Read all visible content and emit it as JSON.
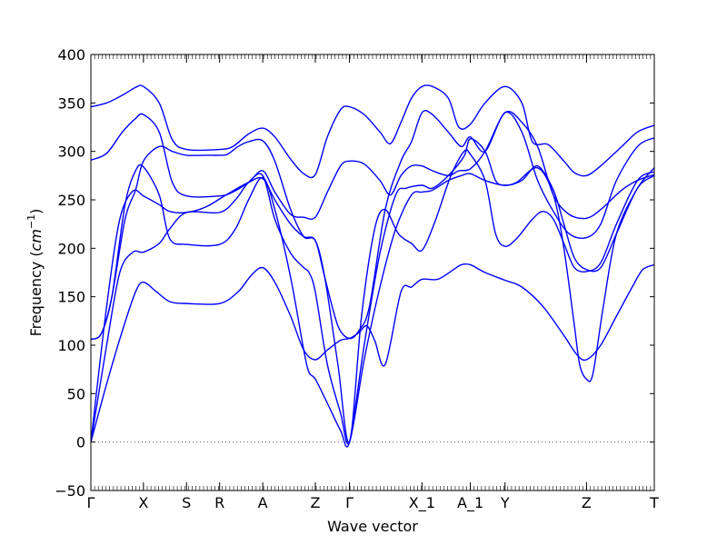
{
  "chart_data": {
    "type": "line",
    "title": "",
    "xlabel": "Wave vector",
    "ylabel_prefix": "Frequency (",
    "ylabel_unit": "cm",
    "ylabel_exp": "−1",
    "ylabel_suffix": ")",
    "ylim": [
      -50,
      400
    ],
    "yticks": [
      -50,
      0,
      50,
      100,
      150,
      200,
      250,
      300,
      350,
      400
    ],
    "ytick_labels": [
      "−50",
      "0",
      "50",
      "100",
      "150",
      "200",
      "250",
      "300",
      "350",
      "400"
    ],
    "xlim": [
      0,
      10.72
    ],
    "high_symmetry_points": [
      {
        "label": "Γ",
        "x": 0
      },
      {
        "label": "X",
        "x": 1
      },
      {
        "label": "S",
        "x": 1.82
      },
      {
        "label": "R",
        "x": 2.45
      },
      {
        "label": "A",
        "x": 3.27
      },
      {
        "label": "Z",
        "x": 4.27
      },
      {
        "label": "Γ",
        "x": 4.92
      },
      {
        "label": "X_1",
        "x": 6.3
      },
      {
        "label": "A_1",
        "x": 7.22
      },
      {
        "label": "Y",
        "x": 7.88
      },
      {
        "label": "Z",
        "x": 9.43
      },
      {
        "label": "T",
        "x": 10.72
      }
    ],
    "zero_line": {
      "y": 0,
      "style": "dotted",
      "color": "#555555"
    },
    "line_color": "#0000ff",
    "series": [
      {
        "values": [
          [
            0,
            0
          ],
          [
            0.3,
            60
          ],
          [
            0.6,
            115
          ],
          [
            0.85,
            155
          ],
          [
            1.0,
            165
          ],
          [
            1.25,
            155
          ],
          [
            1.5,
            145
          ],
          [
            1.82,
            143
          ],
          [
            2.45,
            143
          ],
          [
            2.8,
            155
          ],
          [
            3.05,
            172
          ],
          [
            3.27,
            180
          ],
          [
            3.5,
            165
          ],
          [
            3.8,
            130
          ],
          [
            4.05,
            95
          ],
          [
            4.27,
            85
          ],
          [
            4.5,
            95
          ],
          [
            4.75,
            105
          ],
          [
            4.92,
            107
          ],
          [
            5.1,
            113
          ],
          [
            5.25,
            120
          ],
          [
            5.4,
            105
          ],
          [
            5.6,
            80
          ],
          [
            5.9,
            155
          ],
          [
            6.1,
            160
          ],
          [
            6.3,
            168
          ],
          [
            6.6,
            168
          ],
          [
            6.9,
            178
          ],
          [
            7.05,
            183
          ],
          [
            7.22,
            183
          ],
          [
            7.5,
            175
          ],
          [
            7.88,
            167
          ],
          [
            8.2,
            160
          ],
          [
            8.6,
            140
          ],
          [
            9.0,
            110
          ],
          [
            9.25,
            90
          ],
          [
            9.43,
            85
          ],
          [
            9.7,
            100
          ],
          [
            10.0,
            130
          ],
          [
            10.3,
            160
          ],
          [
            10.5,
            178
          ],
          [
            10.72,
            183
          ]
        ]
      },
      {
        "values": [
          [
            0,
            0
          ],
          [
            0.3,
            100
          ],
          [
            0.55,
            175
          ],
          [
            0.8,
            196
          ],
          [
            1.0,
            196
          ],
          [
            1.3,
            205
          ],
          [
            1.5,
            220
          ],
          [
            1.82,
            237
          ],
          [
            2.45,
            237
          ],
          [
            2.75,
            250
          ],
          [
            3.0,
            268
          ],
          [
            3.27,
            275
          ],
          [
            3.5,
            230
          ],
          [
            3.8,
            195
          ],
          [
            4.05,
            180
          ],
          [
            4.15,
            175
          ],
          [
            4.27,
            155
          ],
          [
            4.5,
            80
          ],
          [
            4.75,
            30
          ],
          [
            4.92,
            0
          ],
          [
            5.2,
            85
          ],
          [
            5.5,
            160
          ],
          [
            5.8,
            220
          ],
          [
            6.1,
            255
          ],
          [
            6.3,
            258
          ],
          [
            6.5,
            260
          ],
          [
            6.8,
            270
          ],
          [
            7.05,
            275
          ],
          [
            7.22,
            277
          ],
          [
            7.5,
            270
          ],
          [
            7.88,
            265
          ],
          [
            8.2,
            270
          ],
          [
            8.5,
            285
          ],
          [
            8.8,
            260
          ],
          [
            9.0,
            225
          ],
          [
            9.2,
            190
          ],
          [
            9.43,
            178
          ],
          [
            9.7,
            180
          ],
          [
            10.0,
            215
          ],
          [
            10.4,
            262
          ],
          [
            10.72,
            275
          ]
        ]
      },
      {
        "values": [
          [
            0,
            0
          ],
          [
            0.3,
            140
          ],
          [
            0.55,
            230
          ],
          [
            0.8,
            259
          ],
          [
            1.0,
            254
          ],
          [
            1.3,
            245
          ],
          [
            1.5,
            238
          ],
          [
            1.82,
            237
          ],
          [
            2.2,
            243
          ],
          [
            2.6,
            256
          ],
          [
            3.0,
            268
          ],
          [
            3.27,
            272
          ],
          [
            3.5,
            250
          ],
          [
            3.8,
            225
          ],
          [
            4.05,
            212
          ],
          [
            4.27,
            208
          ],
          [
            4.45,
            170
          ],
          [
            4.7,
            80
          ],
          [
            4.92,
            0
          ],
          [
            5.15,
            130
          ],
          [
            5.4,
            220
          ],
          [
            5.6,
            240
          ],
          [
            5.85,
            215
          ],
          [
            6.1,
            205
          ],
          [
            6.3,
            198
          ],
          [
            6.55,
            228
          ],
          [
            6.85,
            275
          ],
          [
            7.1,
            300
          ],
          [
            7.22,
            297
          ],
          [
            7.5,
            270
          ],
          [
            7.7,
            215
          ],
          [
            7.88,
            202
          ],
          [
            8.1,
            210
          ],
          [
            8.4,
            230
          ],
          [
            8.6,
            238
          ],
          [
            8.8,
            230
          ],
          [
            9.0,
            205
          ],
          [
            9.2,
            180
          ],
          [
            9.43,
            176
          ],
          [
            9.7,
            185
          ],
          [
            10.0,
            225
          ],
          [
            10.4,
            270
          ],
          [
            10.72,
            279
          ]
        ]
      },
      {
        "values": [
          [
            0,
            106
          ],
          [
            0.2,
            112
          ],
          [
            0.4,
            150
          ],
          [
            0.65,
            245
          ],
          [
            0.85,
            280
          ],
          [
            1.0,
            284
          ],
          [
            1.3,
            255
          ],
          [
            1.5,
            210
          ],
          [
            1.82,
            204
          ],
          [
            2.45,
            204
          ],
          [
            2.75,
            220
          ],
          [
            3.0,
            250
          ],
          [
            3.27,
            273
          ],
          [
            3.5,
            240
          ],
          [
            3.8,
            170
          ],
          [
            4.05,
            95
          ],
          [
            4.15,
            72
          ],
          [
            4.27,
            65
          ],
          [
            4.5,
            40
          ],
          [
            4.75,
            12
          ],
          [
            4.92,
            0
          ],
          [
            5.2,
            100
          ],
          [
            5.5,
            195
          ],
          [
            5.8,
            255
          ],
          [
            6.0,
            262
          ],
          [
            6.3,
            265
          ],
          [
            6.5,
            262
          ],
          [
            6.8,
            275
          ],
          [
            7.1,
            295
          ],
          [
            7.22,
            313
          ],
          [
            7.5,
            300
          ],
          [
            7.7,
            270
          ],
          [
            7.88,
            265
          ],
          [
            8.1,
            268
          ],
          [
            8.5,
            283
          ],
          [
            8.8,
            255
          ],
          [
            9.0,
            200
          ],
          [
            9.2,
            120
          ],
          [
            9.3,
            80
          ],
          [
            9.43,
            65
          ],
          [
            9.55,
            70
          ],
          [
            9.75,
            140
          ],
          [
            10.0,
            215
          ],
          [
            10.4,
            262
          ],
          [
            10.72,
            283
          ]
        ]
      },
      {
        "values": [
          [
            0,
            291
          ],
          [
            0.3,
            298
          ],
          [
            0.6,
            320
          ],
          [
            0.85,
            334
          ],
          [
            1.0,
            338
          ],
          [
            1.3,
            320
          ],
          [
            1.55,
            268
          ],
          [
            1.82,
            254
          ],
          [
            2.45,
            254
          ],
          [
            2.7,
            258
          ],
          [
            3.0,
            268
          ],
          [
            3.27,
            280
          ],
          [
            3.5,
            258
          ],
          [
            3.8,
            235
          ],
          [
            4.05,
            232
          ],
          [
            4.27,
            232
          ],
          [
            4.5,
            258
          ],
          [
            4.75,
            285
          ],
          [
            4.92,
            290
          ],
          [
            5.2,
            287
          ],
          [
            5.5,
            270
          ],
          [
            5.7,
            255
          ],
          [
            5.9,
            275
          ],
          [
            6.1,
            285
          ],
          [
            6.3,
            285
          ],
          [
            6.5,
            280
          ],
          [
            6.8,
            275
          ],
          [
            7.0,
            280
          ],
          [
            7.22,
            282
          ],
          [
            7.5,
            300
          ],
          [
            7.88,
            340
          ],
          [
            8.2,
            330
          ],
          [
            8.5,
            305
          ],
          [
            8.8,
            255
          ],
          [
            9.1,
            235
          ],
          [
            9.43,
            231
          ],
          [
            9.7,
            240
          ],
          [
            10.1,
            260
          ],
          [
            10.4,
            270
          ],
          [
            10.72,
            276
          ]
        ]
      },
      {
        "values": [
          [
            0,
            346
          ],
          [
            0.3,
            350
          ],
          [
            0.6,
            358
          ],
          [
            0.85,
            366
          ],
          [
            1.0,
            367
          ],
          [
            1.3,
            350
          ],
          [
            1.55,
            312
          ],
          [
            1.82,
            302
          ],
          [
            2.45,
            302
          ],
          [
            2.7,
            305
          ],
          [
            3.0,
            318
          ],
          [
            3.27,
            324
          ],
          [
            3.5,
            315
          ],
          [
            3.8,
            292
          ],
          [
            4.05,
            277
          ],
          [
            4.27,
            276
          ],
          [
            4.5,
            315
          ],
          [
            4.75,
            343
          ],
          [
            4.92,
            346
          ],
          [
            5.2,
            338
          ],
          [
            5.5,
            320
          ],
          [
            5.7,
            308
          ],
          [
            5.9,
            330
          ],
          [
            6.1,
            355
          ],
          [
            6.3,
            367
          ],
          [
            6.5,
            367
          ],
          [
            6.8,
            355
          ],
          [
            7.0,
            325
          ],
          [
            7.22,
            328
          ],
          [
            7.5,
            350
          ],
          [
            7.88,
            367
          ],
          [
            8.2,
            350
          ],
          [
            8.4,
            310
          ],
          [
            8.7,
            307
          ],
          [
            9.0,
            290
          ],
          [
            9.2,
            278
          ],
          [
            9.43,
            275
          ],
          [
            9.7,
            285
          ],
          [
            10.1,
            305
          ],
          [
            10.4,
            320
          ],
          [
            10.72,
            327
          ]
        ]
      },
      {
        "values": [
          [
            0,
            106
          ],
          [
            0.2,
            112
          ],
          [
            0.4,
            150
          ],
          [
            0.65,
            230
          ],
          [
            0.85,
            260
          ],
          [
            1.0,
            290
          ],
          [
            1.3,
            305
          ],
          [
            1.55,
            300
          ],
          [
            1.82,
            296
          ],
          [
            2.2,
            296
          ],
          [
            2.45,
            296
          ],
          [
            2.6,
            297
          ],
          [
            2.8,
            305
          ],
          [
            3.0,
            310
          ],
          [
            3.27,
            311
          ],
          [
            3.5,
            290
          ],
          [
            3.8,
            240
          ],
          [
            4.05,
            212
          ],
          [
            4.27,
            208
          ],
          [
            4.45,
            170
          ],
          [
            4.7,
            120
          ],
          [
            4.92,
            107
          ],
          [
            5.1,
            115
          ],
          [
            5.3,
            140
          ],
          [
            5.6,
            240
          ],
          [
            5.9,
            290
          ],
          [
            6.1,
            310
          ],
          [
            6.3,
            340
          ],
          [
            6.5,
            338
          ],
          [
            6.8,
            320
          ],
          [
            7.05,
            305
          ],
          [
            7.22,
            315
          ],
          [
            7.5,
            300
          ],
          [
            7.88,
            340
          ],
          [
            8.2,
            320
          ],
          [
            8.5,
            270
          ],
          [
            8.8,
            238
          ],
          [
            9.1,
            215
          ],
          [
            9.43,
            211
          ],
          [
            9.7,
            225
          ],
          [
            10.0,
            270
          ],
          [
            10.4,
            305
          ],
          [
            10.72,
            314
          ]
        ]
      }
    ]
  }
}
